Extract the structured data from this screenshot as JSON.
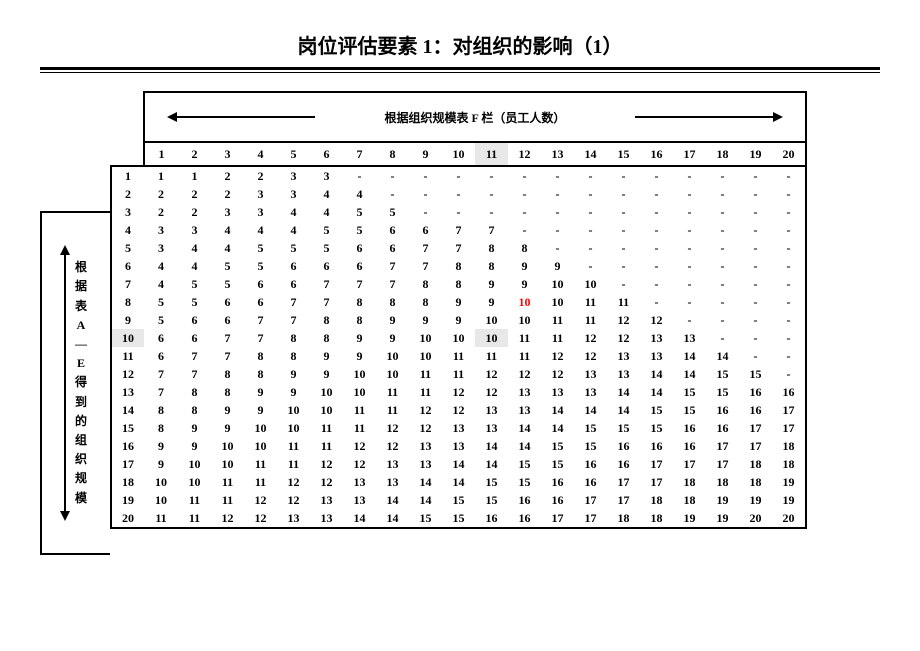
{
  "title": "岗位评估要素 1：对组织的影响（1）",
  "top_caption": "根据组织规模表 F 栏（员工人数）",
  "side_caption": "根据表A—E得到的组织规模",
  "cols": 20,
  "rows": 20,
  "highlight_col": 11,
  "highlight_row": 10,
  "red_cell": {
    "row": 8,
    "col": 12
  },
  "grid": [
    [
      "1",
      "1",
      "2",
      "2",
      "3",
      "3",
      "-",
      "-",
      "-",
      "-",
      "-",
      "-",
      "-",
      "-",
      "-",
      "-",
      "-",
      "-",
      "-",
      "-"
    ],
    [
      "2",
      "2",
      "2",
      "3",
      "3",
      "4",
      "4",
      "-",
      "-",
      "-",
      "-",
      "-",
      "-",
      "-",
      "-",
      "-",
      "-",
      "-",
      "-",
      "-"
    ],
    [
      "2",
      "2",
      "3",
      "3",
      "4",
      "4",
      "5",
      "5",
      "-",
      "-",
      "-",
      "-",
      "-",
      "-",
      "-",
      "-",
      "-",
      "-",
      "-",
      "-"
    ],
    [
      "3",
      "3",
      "4",
      "4",
      "4",
      "5",
      "5",
      "6",
      "6",
      "7",
      "7",
      "-",
      "-",
      "-",
      "-",
      "-",
      "-",
      "-",
      "-",
      "-"
    ],
    [
      "3",
      "4",
      "4",
      "5",
      "5",
      "5",
      "6",
      "6",
      "7",
      "7",
      "8",
      "8",
      "-",
      "-",
      "-",
      "-",
      "-",
      "-",
      "-",
      "-"
    ],
    [
      "4",
      "4",
      "5",
      "5",
      "6",
      "6",
      "6",
      "7",
      "7",
      "8",
      "8",
      "9",
      "9",
      "-",
      "-",
      "-",
      "-",
      "-",
      "-",
      "-"
    ],
    [
      "4",
      "5",
      "5",
      "6",
      "6",
      "7",
      "7",
      "7",
      "8",
      "8",
      "9",
      "9",
      "10",
      "10",
      "-",
      "-",
      "-",
      "-",
      "-",
      "-"
    ],
    [
      "5",
      "5",
      "6",
      "6",
      "7",
      "7",
      "8",
      "8",
      "8",
      "9",
      "9",
      "10",
      "10",
      "11",
      "11",
      "-",
      "-",
      "-",
      "-",
      "-"
    ],
    [
      "5",
      "6",
      "6",
      "7",
      "7",
      "8",
      "8",
      "9",
      "9",
      "9",
      "10",
      "10",
      "11",
      "11",
      "12",
      "12",
      "-",
      "-",
      "-",
      "-"
    ],
    [
      "6",
      "6",
      "7",
      "7",
      "8",
      "8",
      "9",
      "9",
      "10",
      "10",
      "10",
      "11",
      "11",
      "12",
      "12",
      "13",
      "13",
      "-",
      "-",
      "-"
    ],
    [
      "6",
      "7",
      "7",
      "8",
      "8",
      "9",
      "9",
      "10",
      "10",
      "11",
      "11",
      "11",
      "12",
      "12",
      "13",
      "13",
      "14",
      "14",
      "-",
      "-"
    ],
    [
      "7",
      "7",
      "8",
      "8",
      "9",
      "9",
      "10",
      "10",
      "11",
      "11",
      "12",
      "12",
      "12",
      "13",
      "13",
      "14",
      "14",
      "15",
      "15",
      "-"
    ],
    [
      "7",
      "8",
      "8",
      "9",
      "9",
      "10",
      "10",
      "11",
      "11",
      "12",
      "12",
      "13",
      "13",
      "13",
      "14",
      "14",
      "15",
      "15",
      "16",
      "16"
    ],
    [
      "8",
      "8",
      "9",
      "9",
      "10",
      "10",
      "11",
      "11",
      "12",
      "12",
      "13",
      "13",
      "14",
      "14",
      "14",
      "15",
      "15",
      "16",
      "16",
      "17"
    ],
    [
      "8",
      "9",
      "9",
      "10",
      "10",
      "11",
      "11",
      "12",
      "12",
      "13",
      "13",
      "14",
      "14",
      "15",
      "15",
      "15",
      "16",
      "16",
      "17",
      "17"
    ],
    [
      "9",
      "9",
      "10",
      "10",
      "11",
      "11",
      "12",
      "12",
      "13",
      "13",
      "14",
      "14",
      "15",
      "15",
      "16",
      "16",
      "16",
      "17",
      "17",
      "18"
    ],
    [
      "9",
      "10",
      "10",
      "11",
      "11",
      "12",
      "12",
      "13",
      "13",
      "14",
      "14",
      "15",
      "15",
      "16",
      "16",
      "17",
      "17",
      "17",
      "18",
      "18"
    ],
    [
      "10",
      "10",
      "11",
      "11",
      "12",
      "12",
      "13",
      "13",
      "14",
      "14",
      "15",
      "15",
      "16",
      "16",
      "17",
      "17",
      "18",
      "18",
      "18",
      "19"
    ],
    [
      "10",
      "11",
      "11",
      "12",
      "12",
      "13",
      "13",
      "14",
      "14",
      "15",
      "15",
      "16",
      "16",
      "17",
      "17",
      "18",
      "18",
      "19",
      "19",
      "19"
    ],
    [
      "11",
      "11",
      "12",
      "12",
      "13",
      "13",
      "14",
      "14",
      "15",
      "15",
      "16",
      "16",
      "17",
      "17",
      "18",
      "18",
      "19",
      "19",
      "20",
      "20"
    ]
  ],
  "colors": {
    "background": "#ffffff",
    "text": "#000000",
    "highlight": "#e8e8e8",
    "red": "#ff0000",
    "border": "#000000"
  },
  "font": {
    "title_size": 20,
    "cell_size": 12
  }
}
